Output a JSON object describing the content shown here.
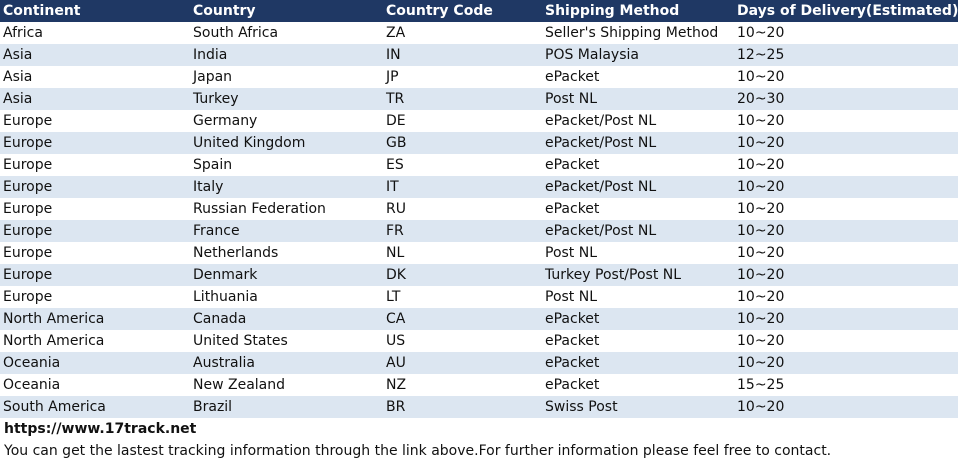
{
  "table": {
    "header": [
      "Continent",
      "Country",
      "Country Code",
      "Shipping Method",
      "Days of Delivery(Estimated)"
    ],
    "rows": [
      [
        "Africa",
        "South Africa",
        "ZA",
        "Seller's Shipping Method",
        "10~20"
      ],
      [
        "Asia",
        "India",
        "IN",
        "POS Malaysia",
        "12~25"
      ],
      [
        "Asia",
        "Japan",
        "JP",
        "ePacket",
        "10~20"
      ],
      [
        "Asia",
        "Turkey",
        "TR",
        "Post NL",
        "20~30"
      ],
      [
        "Europe",
        "Germany",
        "DE",
        "ePacket/Post NL",
        "10~20"
      ],
      [
        "Europe",
        "United Kingdom",
        "GB",
        "ePacket/Post NL",
        "10~20"
      ],
      [
        "Europe",
        "Spain",
        "ES",
        "ePacket",
        "10~20"
      ],
      [
        "Europe",
        "Italy",
        "IT",
        "ePacket/Post NL",
        "10~20"
      ],
      [
        "Europe",
        "Russian Federation",
        "RU",
        "ePacket",
        "10~20"
      ],
      [
        "Europe",
        "France",
        "FR",
        "ePacket/Post NL",
        "10~20"
      ],
      [
        "Europe",
        "Netherlands",
        "NL",
        "Post NL",
        "10~20"
      ],
      [
        "Europe",
        "Denmark",
        "DK",
        "Turkey Post/Post NL",
        "10~20"
      ],
      [
        "Europe",
        "Lithuania",
        "LT",
        "Post NL",
        "10~20"
      ],
      [
        "North America",
        "Canada",
        "CA",
        "ePacket",
        "10~20"
      ],
      [
        "North America",
        "United States",
        "US",
        "ePacket",
        "10~20"
      ],
      [
        "Oceania",
        "Australia",
        "AU",
        "ePacket",
        "10~20"
      ],
      [
        "Oceania",
        "New Zealand",
        "NZ",
        "ePacket",
        "15~25"
      ],
      [
        "South America",
        "Brazil",
        "BR",
        "Swiss Post",
        "10~20"
      ]
    ]
  },
  "footer": {
    "link": "https://www.17track.net",
    "note": "You can get the lastest tracking information through the link above.For further information please feel free to contact."
  }
}
